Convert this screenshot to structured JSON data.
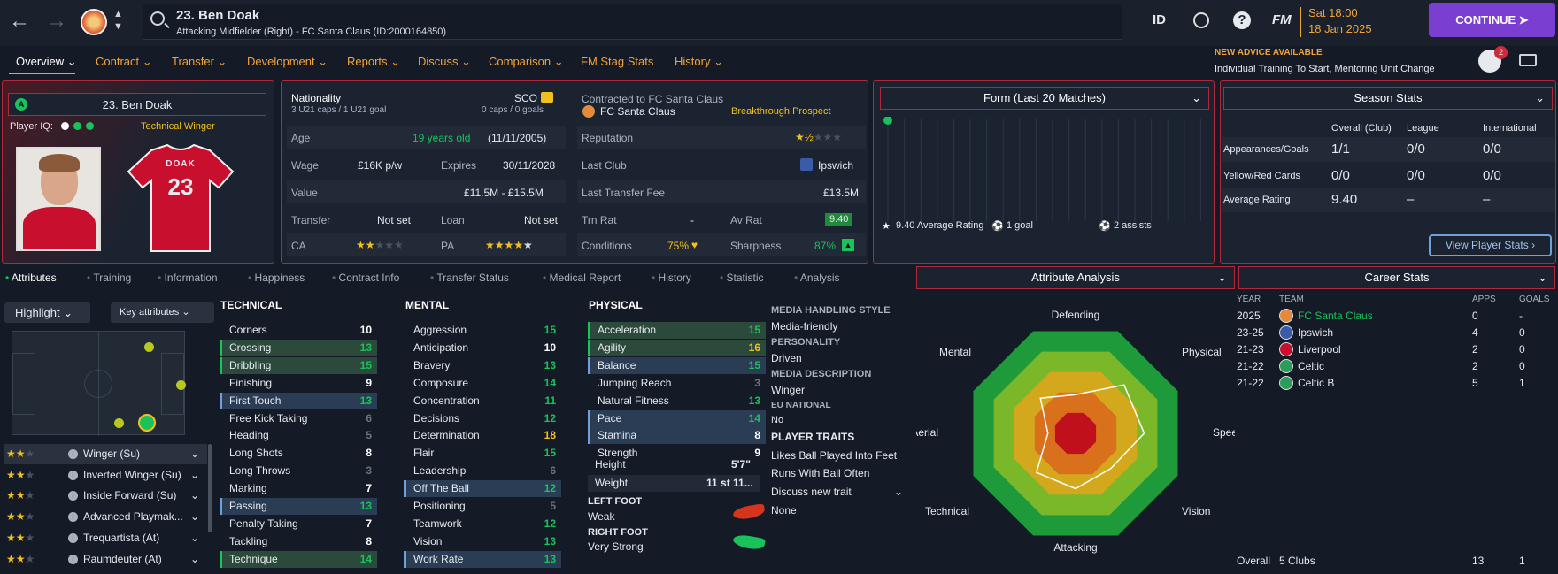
{
  "header": {
    "player_title": "23. Ben Doak",
    "player_sub": "Attacking Midfielder (Right) - FC Santa Claus (ID:2000164850)",
    "date_line1": "Sat 18:00",
    "date_line2": "18 Jan 2025",
    "continue_label": "CONTINUE",
    "id_label": "ID",
    "fm_label": "FM",
    "help_label": "?",
    "notif_count": "2"
  },
  "menu": [
    {
      "label": "Overview"
    },
    {
      "label": "Contract"
    },
    {
      "label": "Transfer"
    },
    {
      "label": "Development"
    },
    {
      "label": "Reports"
    },
    {
      "label": "Discuss"
    },
    {
      "label": "Comparison"
    },
    {
      "label": "FM Stag Stats"
    },
    {
      "label": "History"
    }
  ],
  "advice": {
    "title": "NEW ADVICE AVAILABLE",
    "text": "Individual Training To Start, Mentoring Unit Change"
  },
  "profile": {
    "name": "23. Ben Doak",
    "iq_label": "Player IQ:",
    "role_label": "Technical Winger",
    "shirt_name": "DOAK",
    "shirt_number": "23"
  },
  "info": {
    "nationality_label": "Nationality",
    "nationality_caps": "3 U21 caps / 1 U21 goal",
    "nation_code": "SCO",
    "nation_caps": "0 caps / 0 goals",
    "age_label": "Age",
    "age_value": "19 years old",
    "dob": "(11/11/2005)",
    "wage_label": "Wage",
    "wage_value": "£16K p/w",
    "expires_label": "Expires",
    "expires_value": "30/11/2028",
    "value_label": "Value",
    "value_value": "£11.5M - £15.5M",
    "transfer_label": "Transfer",
    "transfer_value": "Not set",
    "loan_label": "Loan",
    "loan_value": "Not set",
    "ca_label": "CA",
    "pa_label": "PA",
    "contracted_label": "Contracted to FC Santa Claus",
    "club": "FC Santa Claus",
    "prospect": "Breakthrough Prospect",
    "reputation_label": "Reputation",
    "lastclub_label": "Last Club",
    "lastclub_value": "Ipswich",
    "ltf_label": "Last Transfer Fee",
    "ltf_value": "£13.5M",
    "trn_label": "Trn Rat",
    "trn_value": "-",
    "av_label": "Av Rat",
    "av_value": "9.40",
    "cond_label": "Conditions",
    "cond_value": "75%",
    "sharp_label": "Sharpness",
    "sharp_value": "87%"
  },
  "form": {
    "title": "Form (Last 20 Matches)",
    "avg": "9.40 Average Rating",
    "goals": "1 goal",
    "assists": "2 assists"
  },
  "season": {
    "title": "Season Stats",
    "cols": [
      "Overall (Club)",
      "League",
      "International"
    ],
    "rows": [
      {
        "label": "Appearances/Goals",
        "v": [
          "1/1",
          "0/0",
          "0/0"
        ]
      },
      {
        "label": "Yellow/Red Cards",
        "v": [
          "0/0",
          "0/0",
          "0/0"
        ]
      },
      {
        "label": "Average Rating",
        "v": [
          "9.40",
          "–",
          "–"
        ]
      }
    ],
    "button": "View Player Stats"
  },
  "tabs": [
    "Attributes",
    "Training",
    "Information",
    "Happiness",
    "Contract Info",
    "Transfer Status",
    "Medical Report",
    "History",
    "Statistic",
    "Analysis"
  ],
  "left": {
    "highlight": "Highlight",
    "key_attrs": "Key attributes",
    "roles": [
      {
        "name": "Winger (Su)",
        "stars": 2
      },
      {
        "name": "Inverted Winger (Su)",
        "stars": 2
      },
      {
        "name": "Inside Forward (Su)",
        "stars": 2
      },
      {
        "name": "Advanced Playmak...",
        "stars": 2
      },
      {
        "name": "Trequartista (At)",
        "stars": 2
      },
      {
        "name": "Raumdeuter (At)",
        "stars": 2
      }
    ]
  },
  "technical": {
    "title": "TECHNICAL",
    "items": [
      {
        "name": "Corners",
        "v": "10",
        "c": "w",
        "h": ""
      },
      {
        "name": "Crossing",
        "v": "13",
        "c": "g",
        "h": "g"
      },
      {
        "name": "Dribbling",
        "v": "15",
        "c": "g",
        "h": "g"
      },
      {
        "name": "Finishing",
        "v": "9",
        "c": "w",
        "h": ""
      },
      {
        "name": "First Touch",
        "v": "13",
        "c": "g",
        "h": "b"
      },
      {
        "name": "Free Kick Taking",
        "v": "6",
        "c": "d",
        "h": ""
      },
      {
        "name": "Heading",
        "v": "5",
        "c": "d",
        "h": ""
      },
      {
        "name": "Long Shots",
        "v": "8",
        "c": "w",
        "h": ""
      },
      {
        "name": "Long Throws",
        "v": "3",
        "c": "d",
        "h": ""
      },
      {
        "name": "Marking",
        "v": "7",
        "c": "w",
        "h": ""
      },
      {
        "name": "Passing",
        "v": "13",
        "c": "g",
        "h": "b"
      },
      {
        "name": "Penalty Taking",
        "v": "7",
        "c": "w",
        "h": ""
      },
      {
        "name": "Tackling",
        "v": "8",
        "c": "w",
        "h": ""
      },
      {
        "name": "Technique",
        "v": "14",
        "c": "g",
        "h": "g"
      }
    ]
  },
  "mental": {
    "title": "MENTAL",
    "items": [
      {
        "name": "Aggression",
        "v": "15",
        "c": "g",
        "h": ""
      },
      {
        "name": "Anticipation",
        "v": "10",
        "c": "w",
        "h": ""
      },
      {
        "name": "Bravery",
        "v": "13",
        "c": "g",
        "h": ""
      },
      {
        "name": "Composure",
        "v": "14",
        "c": "g",
        "h": ""
      },
      {
        "name": "Concentration",
        "v": "11",
        "c": "g",
        "h": ""
      },
      {
        "name": "Decisions",
        "v": "12",
        "c": "g",
        "h": ""
      },
      {
        "name": "Determination",
        "v": "18",
        "c": "y",
        "h": ""
      },
      {
        "name": "Flair",
        "v": "15",
        "c": "g",
        "h": ""
      },
      {
        "name": "Leadership",
        "v": "6",
        "c": "d",
        "h": ""
      },
      {
        "name": "Off The Ball",
        "v": "12",
        "c": "g",
        "h": "b"
      },
      {
        "name": "Positioning",
        "v": "5",
        "c": "d",
        "h": ""
      },
      {
        "name": "Teamwork",
        "v": "12",
        "c": "g",
        "h": ""
      },
      {
        "name": "Vision",
        "v": "13",
        "c": "g",
        "h": ""
      },
      {
        "name": "Work Rate",
        "v": "13",
        "c": "g",
        "h": "b"
      }
    ]
  },
  "physical": {
    "title": "PHYSICAL",
    "items": [
      {
        "name": "Acceleration",
        "v": "15",
        "c": "g",
        "h": "g"
      },
      {
        "name": "Agility",
        "v": "16",
        "c": "y",
        "h": "g"
      },
      {
        "name": "Balance",
        "v": "15",
        "c": "g",
        "h": "b"
      },
      {
        "name": "Jumping Reach",
        "v": "3",
        "c": "d",
        "h": ""
      },
      {
        "name": "Natural Fitness",
        "v": "13",
        "c": "g",
        "h": ""
      },
      {
        "name": "Pace",
        "v": "14",
        "c": "g",
        "h": "b"
      },
      {
        "name": "Stamina",
        "v": "8",
        "c": "w",
        "h": "b"
      },
      {
        "name": "Strength",
        "v": "9",
        "c": "w",
        "h": ""
      }
    ],
    "height_label": "Height",
    "height_value": "5'7\"",
    "weight_label": "Weight",
    "weight_value": "11 st 11...",
    "lf_label": "LEFT FOOT",
    "lf_value": "Weak",
    "rf_label": "RIGHT FOOT",
    "rf_value": "Very Strong"
  },
  "media": {
    "mhs_label": "MEDIA HANDLING STYLE",
    "mhs_value": "Media-friendly",
    "pers_label": "PERSONALITY",
    "pers_value": "Driven",
    "md_label": "MEDIA DESCRIPTION",
    "md_value": "Winger",
    "eu_label": "EU NATIONAL",
    "eu_value": "No",
    "traits_label": "PLAYER TRAITS",
    "traits": [
      "Likes Ball Played Into Feet",
      "Runs With Ball Often"
    ],
    "discuss": "Discuss new trait",
    "none": "None"
  },
  "analysis": {
    "title": "Attribute Analysis",
    "axes": [
      "Defending",
      "Physical",
      "Speed",
      "Vision",
      "Attacking",
      "Technical",
      "Aerial",
      "Mental"
    ],
    "values": [
      0.35,
      0.62,
      0.62,
      0.45,
      0.5,
      0.5,
      0.25,
      0.45
    ]
  },
  "career": {
    "title": "Career Stats",
    "cols": [
      "YEAR",
      "TEAM",
      "APPS",
      "GOALS"
    ],
    "rows": [
      {
        "year": "2025",
        "team": "FC Santa Claus",
        "apps": "0",
        "goals": "-",
        "hl": true
      },
      {
        "year": "23-25",
        "team": "Ipswich",
        "apps": "4",
        "goals": "0",
        "hl": false
      },
      {
        "year": "21-23",
        "team": "Liverpool",
        "apps": "2",
        "goals": "0",
        "hl": false
      },
      {
        "year": "21-22",
        "team": "Celtic",
        "apps": "2",
        "goals": "0",
        "hl": false
      },
      {
        "year": "21-22",
        "team": "Celtic B",
        "apps": "5",
        "goals": "1",
        "hl": false
      }
    ],
    "overall_label": "Overall",
    "overall_clubs": "5 Clubs",
    "overall_apps": "13",
    "overall_goals": "1"
  }
}
